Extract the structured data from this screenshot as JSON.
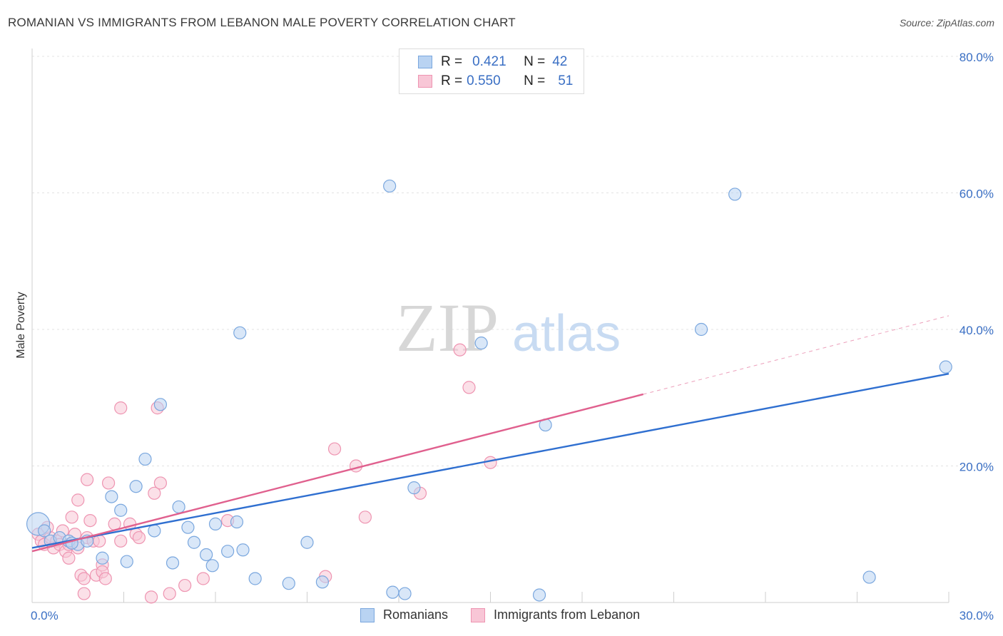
{
  "header": {
    "title": "ROMANIAN VS IMMIGRANTS FROM LEBANON MALE POVERTY CORRELATION CHART",
    "source": "Source: ZipAtlas.com"
  },
  "watermark": {
    "zip": "ZIP",
    "atlas": "atlas"
  },
  "legend": {
    "rows": [
      {
        "r_label": "R =",
        "r_value": "0.421",
        "n_label": "N =",
        "n_value": "42"
      },
      {
        "r_label": "R =",
        "r_value": "0.550",
        "n_label": "N =",
        "n_value": "51"
      }
    ],
    "series": [
      "Romanians",
      "Immigrants from Lebanon"
    ]
  },
  "colors": {
    "blue_fill": "#b9d3f2",
    "blue_stroke": "#7aa7de",
    "blue_line": "#2f6fd0",
    "pink_fill": "#f8c6d6",
    "pink_stroke": "#ee94b1",
    "pink_line": "#e0608e",
    "tick_text": "#3a6fc4"
  },
  "chart_data": {
    "type": "scatter",
    "title": "ROMANIAN VS IMMIGRANTS FROM LEBANON MALE POVERTY CORRELATION CHART",
    "xlabel": "",
    "ylabel": "Male Poverty",
    "xlim": [
      0,
      30
    ],
    "ylim": [
      0,
      80
    ],
    "x_tick_labels": [
      "0.0%",
      "30.0%"
    ],
    "y_ticks": [
      20,
      40,
      60,
      80
    ],
    "y_tick_labels": [
      "20.0%",
      "40.0%",
      "60.0%",
      "80.0%"
    ],
    "series": [
      {
        "name": "Romanians",
        "color": "blue",
        "trend": {
          "x": [
            0,
            30
          ],
          "y": [
            8.0,
            33.5
          ],
          "dashed_extension": false
        },
        "points": [
          [
            0.2,
            11.5
          ],
          [
            0.4,
            10.5
          ],
          [
            0.6,
            9.0
          ],
          [
            0.9,
            9.5
          ],
          [
            1.2,
            9.0
          ],
          [
            1.5,
            8.5
          ],
          [
            1.8,
            9.0
          ],
          [
            2.3,
            6.5
          ],
          [
            2.6,
            15.5
          ],
          [
            2.9,
            13.5
          ],
          [
            3.1,
            6.0
          ],
          [
            3.4,
            17.0
          ],
          [
            3.7,
            21.0
          ],
          [
            4.0,
            10.5
          ],
          [
            4.2,
            29.0
          ],
          [
            4.6,
            5.8
          ],
          [
            4.8,
            14.0
          ],
          [
            5.1,
            11.0
          ],
          [
            5.3,
            8.8
          ],
          [
            5.7,
            7.0
          ],
          [
            5.9,
            5.4
          ],
          [
            6.0,
            11.5
          ],
          [
            6.4,
            7.5
          ],
          [
            6.7,
            11.8
          ],
          [
            6.8,
            39.5
          ],
          [
            6.9,
            7.7
          ],
          [
            7.3,
            3.5
          ],
          [
            8.4,
            2.8
          ],
          [
            9.0,
            8.8
          ],
          [
            9.5,
            3.0
          ],
          [
            11.7,
            61.0
          ],
          [
            11.8,
            1.5
          ],
          [
            12.2,
            1.3
          ],
          [
            12.5,
            16.8
          ],
          [
            14.7,
            38.0
          ],
          [
            16.6,
            1.1
          ],
          [
            16.8,
            26.0
          ],
          [
            21.9,
            40.0
          ],
          [
            23.0,
            59.8
          ],
          [
            27.4,
            3.7
          ],
          [
            29.9,
            34.5
          ],
          [
            1.3,
            8.7
          ]
        ]
      },
      {
        "name": "Immigrants from Lebanon",
        "color": "pink",
        "trend": {
          "x": [
            0,
            20
          ],
          "y": [
            7.5,
            30.5
          ],
          "dashed_extension": true,
          "dashed_to": {
            "x": 30,
            "y": 42.0
          }
        },
        "points": [
          [
            0.2,
            10.0
          ],
          [
            0.3,
            9.0
          ],
          [
            0.4,
            8.5
          ],
          [
            0.6,
            9.5
          ],
          [
            0.7,
            8.0
          ],
          [
            0.8,
            9.0
          ],
          [
            0.9,
            8.5
          ],
          [
            1.0,
            10.5
          ],
          [
            1.1,
            7.5
          ],
          [
            1.2,
            8.5
          ],
          [
            1.2,
            6.5
          ],
          [
            1.3,
            12.5
          ],
          [
            1.4,
            10.0
          ],
          [
            1.5,
            15.0
          ],
          [
            1.5,
            8.0
          ],
          [
            1.6,
            4.0
          ],
          [
            1.7,
            3.5
          ],
          [
            1.7,
            1.3
          ],
          [
            1.8,
            9.5
          ],
          [
            1.8,
            18.0
          ],
          [
            1.9,
            12.0
          ],
          [
            2.0,
            9.0
          ],
          [
            2.1,
            4.0
          ],
          [
            2.2,
            9.0
          ],
          [
            2.3,
            5.5
          ],
          [
            2.3,
            4.5
          ],
          [
            2.4,
            3.5
          ],
          [
            2.5,
            17.5
          ],
          [
            2.7,
            11.5
          ],
          [
            2.9,
            9.0
          ],
          [
            2.9,
            28.5
          ],
          [
            3.2,
            11.5
          ],
          [
            3.4,
            10.0
          ],
          [
            3.5,
            9.5
          ],
          [
            3.9,
            0.8
          ],
          [
            4.0,
            16.0
          ],
          [
            4.1,
            28.5
          ],
          [
            4.2,
            17.5
          ],
          [
            4.5,
            1.3
          ],
          [
            5.0,
            2.5
          ],
          [
            5.6,
            3.5
          ],
          [
            6.4,
            12.0
          ],
          [
            9.6,
            3.8
          ],
          [
            9.9,
            22.5
          ],
          [
            10.6,
            20.0
          ],
          [
            10.9,
            12.5
          ],
          [
            12.7,
            16.0
          ],
          [
            14.0,
            37.0
          ],
          [
            14.3,
            31.5
          ],
          [
            15.0,
            20.5
          ],
          [
            0.5,
            11.0
          ]
        ]
      }
    ]
  }
}
